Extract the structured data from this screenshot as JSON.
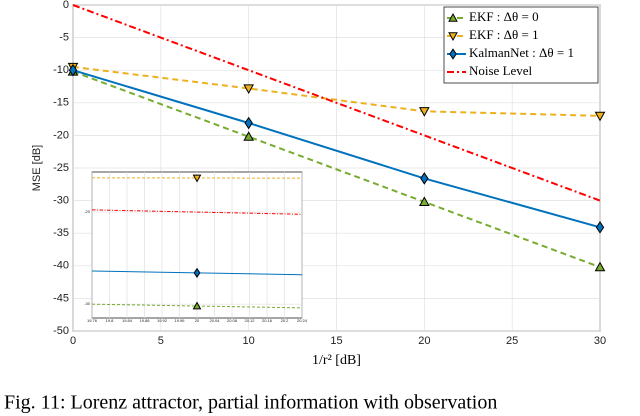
{
  "chart_data": [
    {
      "type": "line",
      "x_label": "1/r² [dB]",
      "y_label": "MSE [dB]",
      "x": [
        0,
        10,
        20,
        30
      ],
      "xlim": [
        0,
        30
      ],
      "xticks": [
        0,
        5,
        10,
        15,
        20,
        25,
        30
      ],
      "ylim": [
        -50,
        0
      ],
      "yticks": [
        -50,
        -45,
        -40,
        -35,
        -30,
        -25,
        -20,
        -15,
        -10,
        -5,
        0
      ],
      "grid": true,
      "legend": "upper right",
      "series": [
        {
          "name": "EKF : Δθ = 0",
          "color": "#77ac30",
          "dash": "dashed",
          "marker": "^",
          "values": [
            -10.2,
            -20.2,
            -30.2,
            -40.2
          ]
        },
        {
          "name": "EKF : Δθ = 1",
          "color": "#edb120",
          "dash": "dashed",
          "marker": "v",
          "values": [
            -9.5,
            -12.8,
            -16.3,
            -17.0
          ]
        },
        {
          "name": "KalmanNet : Δθ = 1",
          "color": "#0072bd",
          "dash": "solid",
          "marker": "d",
          "values": [
            -10.0,
            -18.1,
            -26.6,
            -34.1
          ]
        },
        {
          "name": "Noise Level",
          "color": "#ff0000",
          "dash": "dashdot",
          "marker": null,
          "values": [
            0,
            -10,
            -20,
            -30
          ]
        }
      ]
    },
    {
      "type": "line",
      "x": [
        19.76,
        20,
        20.24
      ],
      "xlim": [
        19.76,
        20.24
      ],
      "xticks": [
        19.76,
        19.8,
        19.84,
        19.88,
        19.92,
        19.96,
        20,
        20.04,
        20.08,
        20.12,
        20.16,
        20.2,
        20.24
      ],
      "ylim": [
        -31.5,
        -15.65
      ],
      "yticks": [
        -30,
        -20
      ],
      "grid": true,
      "series": [
        {
          "color": "#77ac30",
          "dash": "dashed",
          "marker": "^",
          "marker_index": 1,
          "values": [
            -30.0,
            -30.2,
            -30.4
          ]
        },
        {
          "color": "#edb120",
          "dash": "dashed",
          "marker": "v",
          "marker_index": 1,
          "values": [
            -16.28,
            -16.3,
            -16.32
          ]
        },
        {
          "color": "#0072bd",
          "dash": "solid",
          "marker": "d",
          "marker_index": 1,
          "values": [
            -26.4,
            -26.6,
            -26.8
          ]
        },
        {
          "color": "#ff0000",
          "dash": "dashdot",
          "marker": null,
          "values": [
            -19.76,
            -20,
            -20.24
          ]
        }
      ]
    }
  ],
  "caption": "Fig. 11: Lorenz attractor, partial information with observation"
}
